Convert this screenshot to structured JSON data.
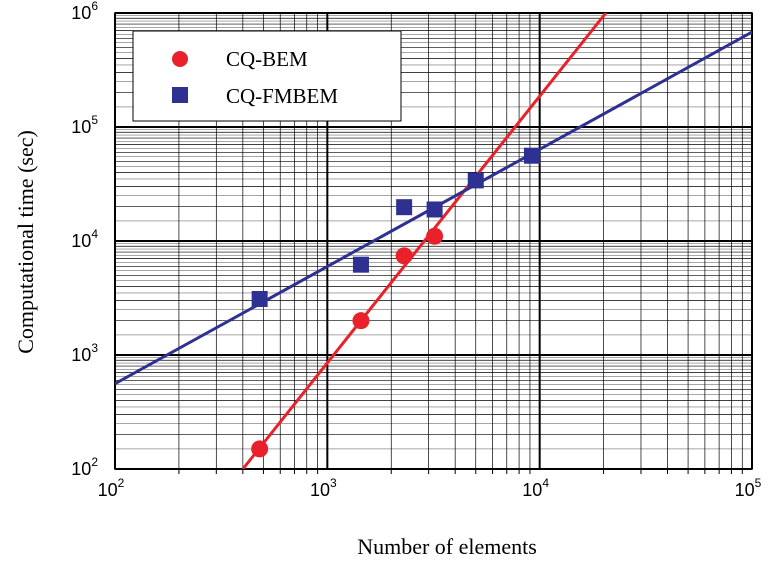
{
  "chart_data": {
    "type": "scatter",
    "xlabel": "Number of elements",
    "ylabel": "Computational time (sec)",
    "x_scale": "log",
    "y_scale": "log",
    "xlim": [
      100,
      100000
    ],
    "ylim": [
      100,
      1000000
    ],
    "x_ticks": [
      {
        "base": "10",
        "exp": "2",
        "value": 100
      },
      {
        "base": "10",
        "exp": "3",
        "value": 1000
      },
      {
        "base": "10",
        "exp": "4",
        "value": 10000
      },
      {
        "base": "10",
        "exp": "5",
        "value": 100000
      }
    ],
    "y_ticks": [
      {
        "base": "10",
        "exp": "2",
        "value": 100
      },
      {
        "base": "10",
        "exp": "3",
        "value": 1000
      },
      {
        "base": "10",
        "exp": "4",
        "value": 10000
      },
      {
        "base": "10",
        "exp": "5",
        "value": 100000
      },
      {
        "base": "10",
        "exp": "6",
        "value": 1000000
      }
    ],
    "grid": true,
    "legend_position": "top-left",
    "series": [
      {
        "name": "CQ-BEM",
        "marker": "circle",
        "color": "#e8212b",
        "points": [
          {
            "x": 480,
            "y": 150
          },
          {
            "x": 1440,
            "y": 2000
          },
          {
            "x": 2300,
            "y": 7400
          },
          {
            "x": 3200,
            "y": 11000
          }
        ],
        "fit_line": [
          {
            "x": 400,
            "y": 100
          },
          {
            "x": 20500,
            "y": 1000000
          }
        ]
      },
      {
        "name": "CQ-FMBEM",
        "marker": "square",
        "color": "#2e3192",
        "points": [
          {
            "x": 480,
            "y": 3100
          },
          {
            "x": 1440,
            "y": 6200
          },
          {
            "x": 2300,
            "y": 19800
          },
          {
            "x": 3200,
            "y": 18900
          },
          {
            "x": 5000,
            "y": 34000
          },
          {
            "x": 9200,
            "y": 56000
          }
        ],
        "fit_line": [
          {
            "x": 100,
            "y": 560
          },
          {
            "x": 100000,
            "y": 680000
          }
        ]
      }
    ]
  }
}
